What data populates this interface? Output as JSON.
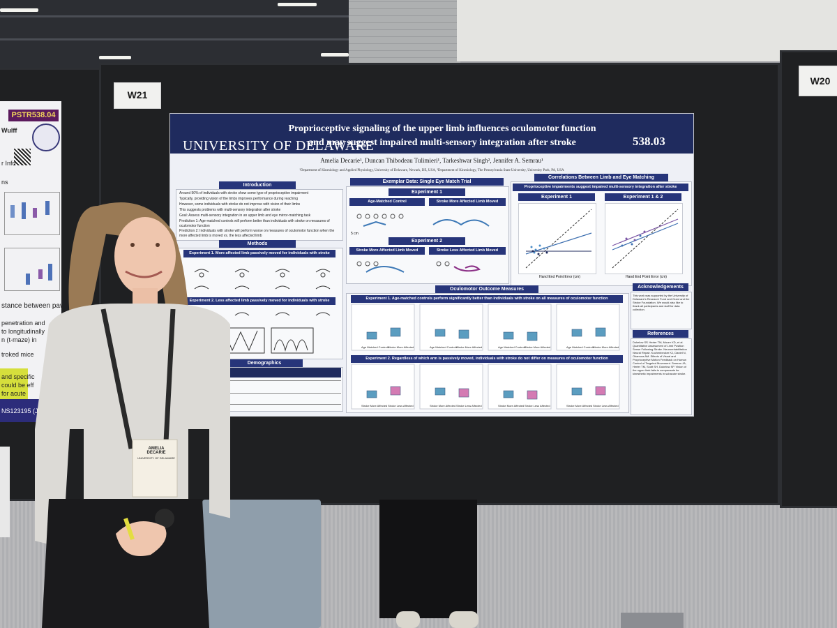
{
  "booth_tags": {
    "main": "W21",
    "right": "W20"
  },
  "left_poster": {
    "id": "PSTR538.04",
    "author_fragment": "Wulff",
    "info_fragment": "r Info",
    "ns_label": "ns",
    "caption_fragment": "stance between paws",
    "line1": "penetration and",
    "line2": "to longitudinally",
    "line3": "n (t-maze) in",
    "line4": "troked mice",
    "line5": "and specific",
    "line6": "could be eff",
    "line7": "for acute",
    "grant": "NS123195 (JW"
  },
  "poster": {
    "university": "UNIVERSITY OF DELAWARE",
    "title_line1": "Proprioceptive signaling of the upper limb influences oculomotor function",
    "title_line2": "and may suggest impaired multi-sensory integration after stroke",
    "number": "538.03",
    "authors": "Amelia Decarie¹, Duncan Thibodeau Tulimieri¹, Tarkeshwar Singh², Jennifer A. Semrau¹",
    "affiliations": "¹Department of Kinesiology and Applied Physiology, University of Delaware, Newark, DE, USA, ²Department of Kinesiology, The Pennsylvania State University, University Park, PA, USA",
    "sections": {
      "introduction": "Introduction",
      "methods": "Methods",
      "demographics": "Demographics",
      "exemplar": "Exemplar Data: Single Eye Match Trial",
      "correlations": "Correlations Between Limb and Eye Matching",
      "oculomotor": "Oculomotor Outcome Measures",
      "acknowledgements": "Acknowledgements",
      "references": "References"
    },
    "intro_bullets": [
      "Around 50% of individuals with stroke show some type of proprioceptive impairment",
      "Typically, providing vision of the limbs improves performance during reaching",
      "However, some individuals with stroke do not improve with vision of their limbs",
      "This suggests problems with multi-sensory integration after stroke",
      "Goal: Assess multi-sensory integration in an upper limb and eye mirror-matching task",
      "Prediction 1: Age-matched controls will perform better than individuals with stroke on measures of oculomotor function",
      "Prediction 2: Individuals with stroke will perform worse on measures of oculomotor function when the more affected limb is moved vs. the less affected limb"
    ],
    "methods_exp1": "Experiment 1. More affected limb passively moved for individuals with stroke",
    "methods_exp2": "Experiment 2. Less affected limb passively moved for individuals with stroke",
    "exemplar_exp1": "Experiment 1",
    "exemplar_exp2": "Experiment 2",
    "exemplar_labels": [
      "Age-Matched Control",
      "Stroke More Affected Limb Moved",
      "Stroke More Affected Limb Moved",
      "Stroke Less Affected Limb Moved"
    ],
    "scale_label": "5 cm",
    "corr_subtitle": "Proprioceptive impairments suggest impaired multi-sensory integration after stroke",
    "corr_exp1": "Experiment 1",
    "corr_exp12": "Experiment 1 & 2",
    "corr_xlabel": "Hand End Point Error (cm)",
    "corr_ylabel": "Eye End Point Error (cm)",
    "corr_legend1": [
      "Age Matched Controls",
      "Stroke More Affected"
    ],
    "corr_legend2": [
      "Stroke More Affected",
      "Stroke Less Affected"
    ],
    "ocu_exp1": "Experiment 1. Age-matched controls perform significantly better than individuals with stroke on all measures of oculomotor function",
    "ocu_exp2": "Experiment 2. Regardless of which arm is passively moved, individuals with stroke do not differ on measures of oculomotor function",
    "ocu_xlabels1": [
      "Age Matched Controls",
      "Stroke More Affected"
    ],
    "ocu_xlabels2": [
      "Stroke More Affected",
      "Stroke Less Affected"
    ],
    "acknowledgements_text": "This work was supported by the University of Delaware's Research Fund and Grant and the Stroke Foundation. We would also like to thank all participants and staff for data collection.",
    "references_text": "Dukelow SP, Herter TM, Moore KD, et al. Quantitative Assessment of Limb Position Sense Following Stroke. Neurorehabilitation Neural Repair. Kuchenbecker KJ, Daniel N, Okamura AM. Effects of Visual and Proprioceptive Motion Feedback on Human Control of Targeted Movement. Semrau JA, Herter TM, Scott SH, Dukelow SP. Vision of the upper limb fails to compensate for kinesthetic impairments in subacute stroke."
  },
  "badge": {
    "first": "AMELIA",
    "last": "DECARIE",
    "org": "UNIVERSITY OF DELAWARE"
  },
  "colors": {
    "poster_header": "#1f2b5e",
    "section_head": "#27357a",
    "board": "#1f2022",
    "box_teal": "#5b9dc0",
    "box_pink": "#d47bb3"
  }
}
